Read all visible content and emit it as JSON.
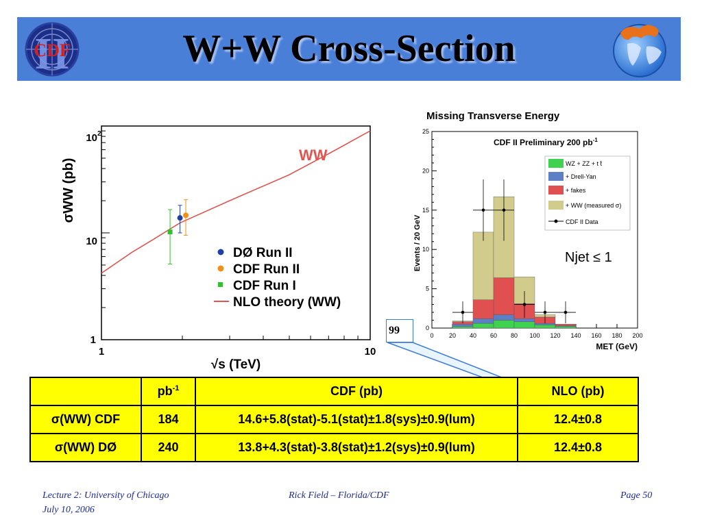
{
  "slide": {
    "title": "W+W Cross-Section",
    "logo_left_text": "CDF",
    "logo_left_roman": "II"
  },
  "chart_data": [
    {
      "type": "line",
      "ylabel": "σWW (pb)",
      "xlabel": "√s (TeV)",
      "x_scale": "log",
      "y_scale": "log",
      "xlim": [
        1,
        10
      ],
      "ylim": [
        1,
        100
      ],
      "x_tick_labels": [
        "1",
        "10"
      ],
      "y_tick_labels": [
        "1",
        "10",
        "10²"
      ],
      "annotation": "WW",
      "series": [
        {
          "name": "NLO theory (WW)",
          "color": "#e0554f",
          "points": [
            [
              1,
              4.2
            ],
            [
              1.3,
              6.6
            ],
            [
              1.55,
              8.6
            ],
            [
              1.96,
              12.4
            ],
            [
              3,
              20
            ],
            [
              5,
              35
            ],
            [
              7,
              55
            ],
            [
              10,
              90
            ]
          ]
        },
        {
          "name": "DØ Run II",
          "color": "#1f3fa8",
          "marker": "circle",
          "points": [
            [
              1.96,
              13.8
            ]
          ],
          "err_low": [
            3.8
          ],
          "err_high": [
            4.3
          ]
        },
        {
          "name": "CDF Run II",
          "color": "#f0901a",
          "marker": "circle",
          "points": [
            [
              2.06,
              14.6
            ]
          ],
          "err_low": [
            5.1
          ],
          "err_high": [
            5.8
          ]
        },
        {
          "name": "CDF Run I",
          "color": "#30c030",
          "marker": "square",
          "points": [
            [
              1.8,
              10.2
            ]
          ],
          "err_low": [
            5.1
          ],
          "err_high": [
            6.3
          ]
        }
      ],
      "legend_position": "bottom-right"
    },
    {
      "type": "bar",
      "title": "Missing Transverse Energy",
      "subtitle": "CDF II Preliminary  200 pb-1",
      "xlabel": "MET (GeV)",
      "ylabel": "Events / 20 GeV",
      "xlim": [
        0,
        200
      ],
      "ylim": [
        0,
        25
      ],
      "x_ticks": [
        0,
        20,
        40,
        60,
        80,
        100,
        120,
        140,
        160,
        180,
        200
      ],
      "y_ticks": [
        0,
        5,
        10,
        15,
        20,
        25
      ],
      "bin_edges": [
        20,
        40,
        60,
        80,
        100,
        120,
        140
      ],
      "stack": [
        {
          "name": "WZ + ZZ + t t̄",
          "color": "#3fd24f",
          "values": [
            0.2,
            0.6,
            1.0,
            0.8,
            0.4,
            0.2
          ]
        },
        {
          "name": "+ Drell-Yan",
          "color": "#5d7fc6",
          "values": [
            0.3,
            0.6,
            0.7,
            0.4,
            0.2,
            0.1
          ]
        },
        {
          "name": "+ fakes",
          "color": "#e05050",
          "values": [
            0.3,
            2.4,
            4.7,
            1.9,
            0.8,
            0.2
          ]
        },
        {
          "name": "+ WW (measured  σ)",
          "color": "#d2cc8c",
          "values": [
            0.1,
            8.6,
            10.3,
            3.4,
            0.3,
            0.0
          ]
        }
      ],
      "data_series": {
        "name": "CDF II Data",
        "x": [
          30,
          50,
          70,
          90,
          110,
          130
        ],
        "y": [
          2,
          15,
          15,
          3,
          2,
          2
        ],
        "err": [
          1.4,
          3.9,
          3.9,
          1.7,
          1.4,
          1.4
        ]
      },
      "annotation": "Njet ≤ 1"
    }
  ],
  "callout_text": "99",
  "table": {
    "header": [
      "",
      "pb-1",
      "CDF (pb)",
      "NLO (pb)"
    ],
    "rows": [
      [
        "σ(WW) CDF",
        "184",
        "14.6+5.8(stat)-5.1(stat)±1.8(sys)±0.9(lum)",
        "12.4±0.8"
      ],
      [
        "σ(WW) DØ",
        "240",
        "13.8+4.3(stat)-3.8(stat)±1.2(sys)±0.9(lum)",
        "12.4±0.8"
      ]
    ]
  },
  "footer": {
    "left_line1": "Lecture 2: University of Chicago",
    "left_line2": "July 10, 2006",
    "center": "Rick Field – Florida/CDF",
    "right": "Page 50"
  }
}
